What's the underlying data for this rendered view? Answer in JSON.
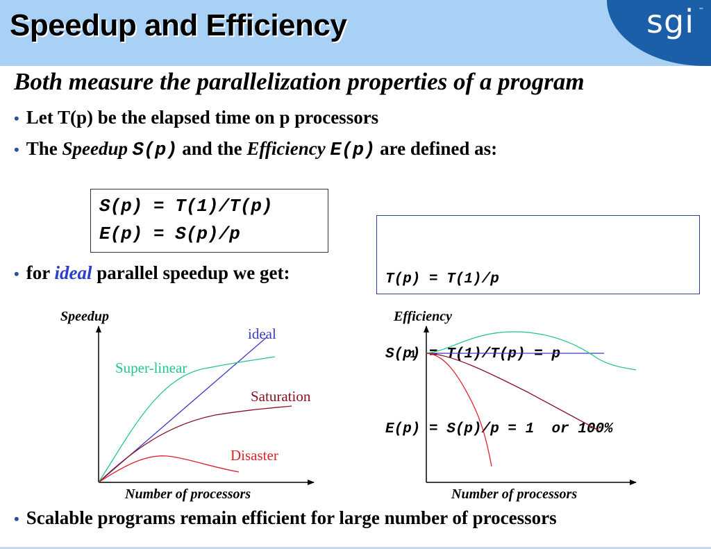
{
  "header": {
    "title": "Speedup and Efficiency",
    "logo": "sgi",
    "tm": "™"
  },
  "subtitle": "Both measure the parallelization properties of a program",
  "bullets": {
    "b1": "Let T(p) be the elapsed time on p processors",
    "b2_pre": "The ",
    "b2_speedup": "Speedup",
    "b2_sp": "S(p)",
    "b2_mid": " and the ",
    "b2_efficiency": "Efficiency",
    "b2_ep": "E(p)",
    "b2_post": " are defined as:",
    "b3_pre": "for ",
    "b3_ideal": "ideal",
    "b3_post": " parallel speedup we get:",
    "b4": "Scalable programs remain efficient for large number of processors"
  },
  "definitions": {
    "line1": "S(p) = T(1)/T(p)",
    "line2": "E(p) = S(p)/p"
  },
  "ideal_box": {
    "line1": "T(p) = T(1)/p",
    "line2": "S(p) = T(1)/T(p) = p",
    "line3": "E(p) = S(p)/p = 1  or 100%"
  },
  "speedup_chart": {
    "ylabel": "Speedup",
    "xlabel": "Number of processors",
    "curves": {
      "ideal": "ideal",
      "superlinear": "Super-linear",
      "saturation": "Saturation",
      "disaster": "Disaster"
    }
  },
  "efficiency_chart": {
    "ylabel": "Efficiency",
    "xlabel": "Number of processors",
    "tick": "1"
  },
  "colors": {
    "ideal": "#3a3ac8",
    "superlinear": "#1ec78c",
    "saturation": "#8a1024",
    "disaster": "#e0202a",
    "header_bg": "#a9d0f5",
    "header_accent": "#1a5fa8"
  }
}
